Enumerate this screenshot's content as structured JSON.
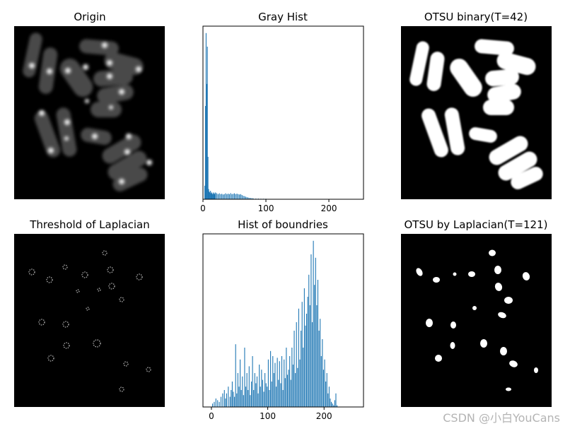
{
  "figure": {
    "watermark": "CSDN @小白YouCans"
  },
  "chart_data": [
    {
      "type": "image",
      "title": "Origin",
      "content": "grayscale fluorescence micrograph of rod-shaped cells"
    },
    {
      "type": "bar",
      "title": "Gray Hist",
      "xlabel": "",
      "ylabel": "",
      "xlim": [
        0,
        255
      ],
      "xticks": [
        0,
        100,
        200
      ],
      "yaxis_visible": false,
      "bar_color": "#1f77b4",
      "x": [
        3,
        4,
        5,
        6,
        7,
        8,
        9,
        10,
        11,
        12,
        13,
        14,
        15,
        16,
        17,
        18,
        19,
        20,
        22,
        24,
        26,
        28,
        30,
        32,
        34,
        36,
        38,
        40,
        42,
        44,
        46,
        48,
        50,
        52,
        54,
        56,
        58,
        60,
        62,
        64,
        66,
        68,
        70,
        72,
        74,
        76,
        78,
        80,
        84,
        88,
        92,
        96,
        100,
        105,
        110,
        120,
        130,
        145,
        190
      ],
      "values": [
        0.08,
        0.55,
        0.98,
        0.68,
        0.9,
        0.25,
        0.06,
        0.045,
        0.04,
        0.05,
        0.035,
        0.04,
        0.03,
        0.035,
        0.04,
        0.03,
        0.035,
        0.04,
        0.035,
        0.03,
        0.035,
        0.03,
        0.032,
        0.028,
        0.03,
        0.035,
        0.03,
        0.033,
        0.03,
        0.036,
        0.03,
        0.032,
        0.035,
        0.03,
        0.033,
        0.03,
        0.028,
        0.03,
        0.025,
        0.02,
        0.018,
        0.015,
        0.012,
        0.01,
        0.008,
        0.007,
        0.006,
        0.005,
        0.004,
        0.004,
        0.003,
        0.003,
        0.003,
        0.002,
        0.002,
        0.002,
        0.002,
        0.001,
        0.002
      ]
    },
    {
      "type": "image",
      "title": "OTSU binary(T=42)",
      "content": "binary segmentation mask of the cells"
    },
    {
      "type": "image",
      "title": "Threshold of Laplacian",
      "content": "thresholded Laplacian edge response around bright spots"
    },
    {
      "type": "bar",
      "title": "Hist of boundries",
      "xlabel": "",
      "ylabel": "",
      "xlim": [
        -15,
        270
      ],
      "xticks": [
        0,
        100,
        200
      ],
      "yaxis_visible": false,
      "bar_color": "#1f77b4",
      "x": [
        2,
        5,
        8,
        11,
        14,
        17,
        20,
        23,
        25,
        27,
        30,
        33,
        35,
        37,
        39,
        41,
        43,
        45,
        47,
        49,
        51,
        53,
        55,
        57,
        59,
        61,
        63,
        65,
        67,
        69,
        71,
        73,
        75,
        77,
        79,
        81,
        83,
        85,
        87,
        89,
        91,
        93,
        95,
        97,
        99,
        101,
        103,
        105,
        107,
        109,
        111,
        113,
        115,
        117,
        119,
        121,
        123,
        125,
        127,
        129,
        131,
        133,
        135,
        137,
        139,
        141,
        143,
        145,
        147,
        149,
        151,
        153,
        155,
        157,
        159,
        161,
        163,
        165,
        167,
        169,
        171,
        173,
        175,
        177,
        179,
        181,
        183,
        185,
        187,
        189,
        191,
        193,
        195,
        197,
        199,
        201,
        203,
        205,
        207,
        209,
        211,
        213,
        215,
        217,
        219,
        221,
        223
      ],
      "values": [
        0.02,
        0.03,
        0.05,
        0.04,
        0.03,
        0.06,
        0.08,
        0.1,
        0.05,
        0.08,
        0.12,
        0.06,
        0.1,
        0.15,
        0.09,
        0.06,
        0.37,
        0.08,
        0.2,
        0.12,
        0.28,
        0.1,
        0.18,
        0.07,
        0.35,
        0.12,
        0.2,
        0.1,
        0.24,
        0.07,
        0.15,
        0.3,
        0.1,
        0.2,
        0.14,
        0.18,
        0.08,
        0.25,
        0.12,
        0.22,
        0.16,
        0.09,
        0.2,
        0.14,
        0.12,
        0.28,
        0.1,
        0.33,
        0.15,
        0.3,
        0.2,
        0.26,
        0.12,
        0.29,
        0.16,
        0.27,
        0.14,
        0.3,
        0.1,
        0.28,
        0.17,
        0.35,
        0.19,
        0.22,
        0.3,
        0.16,
        0.35,
        0.25,
        0.45,
        0.2,
        0.5,
        0.23,
        0.58,
        0.28,
        0.45,
        0.62,
        0.35,
        0.7,
        0.48,
        0.55,
        0.65,
        0.78,
        0.6,
        0.9,
        0.5,
        0.98,
        0.72,
        0.88,
        0.6,
        0.75,
        0.45,
        0.52,
        0.3,
        0.4,
        0.22,
        0.28,
        0.15,
        0.2,
        0.08,
        0.12,
        0.05,
        0.03,
        0.02,
        0.01,
        0.04,
        0.08,
        0.01
      ]
    },
    {
      "type": "image",
      "title": "OTSU by Laplacian(T=121)",
      "content": "binary mask of small bright blobs (nuclei)"
    }
  ]
}
